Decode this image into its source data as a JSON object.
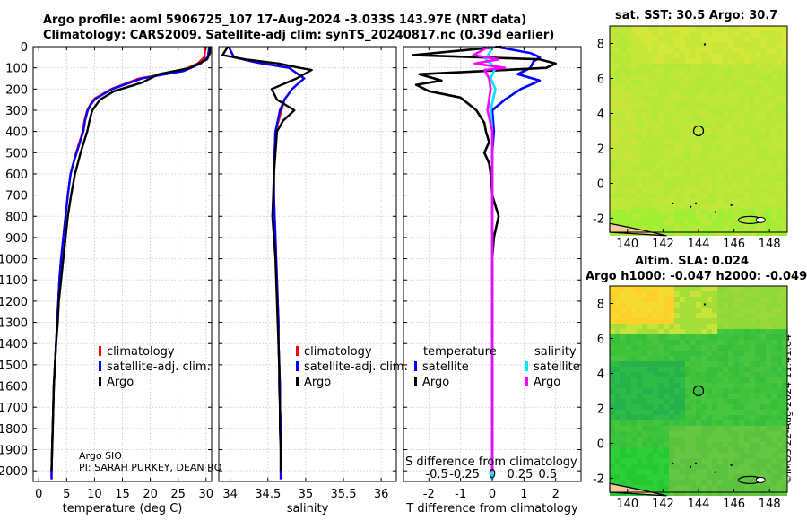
{
  "header": {
    "line1": "Argo profile: aoml 5906725_107 17-Aug-2024 -3.033S 143.97E (NRT data)",
    "line2": "Climatology: CARS2009. Satellite-adj clim: synTS_20240817.nc (0.39d earlier)"
  },
  "map_titles": {
    "sst": "sat. SST: 30.5 Argo: 30.7",
    "sla1": "Altim. SLA: 0.024",
    "sla2": "Argo h1000: -0.047 h2000: -0.049"
  },
  "stamp": "©IMOS 22-Aug-2024 11:41:04",
  "info": {
    "pi_line1": "Argo SIO",
    "pi_line2": "PI: SARAH PURKEY, DEAN RO"
  },
  "colors": {
    "climatology": "#ff0000",
    "satellite": "#0000ff",
    "argo": "#000000",
    "sal_satellite": "#00e5ff",
    "sal_argo": "#ff00ff",
    "sea_sst": "#b6e83a",
    "sea_sla": "#39c639",
    "land": "#f5c99a"
  },
  "chart_data": [
    {
      "type": "line",
      "id": "temperature",
      "xlabel": "temperature (deg C)",
      "ylabel": "",
      "xlim": [
        -1,
        31
      ],
      "ylim": [
        2050,
        0
      ],
      "xticks": [
        0,
        5,
        10,
        15,
        20,
        25,
        30
      ],
      "xtick_labels": [
        "0",
        "5",
        "10",
        "15",
        "20",
        "25",
        "30"
      ],
      "yticks": [
        0,
        100,
        200,
        300,
        400,
        500,
        600,
        700,
        800,
        900,
        1000,
        1100,
        1200,
        1300,
        1400,
        1500,
        1600,
        1700,
        1800,
        1900,
        2000
      ],
      "ytick_labels": [
        "0",
        "100",
        "200",
        "300",
        "400",
        "500",
        "600",
        "700",
        "800",
        "900",
        "1000",
        "1100",
        "1200",
        "1300",
        "1400",
        "1500",
        "1600",
        "1700",
        "1800",
        "1900",
        "2000"
      ],
      "legend": [
        "climatology",
        "satellite-adj. clim.",
        "Argo"
      ],
      "series": [
        {
          "name": "climatology",
          "x": [
            29.9,
            29.7,
            28.5,
            25.5,
            18,
            13,
            10,
            9.3,
            8.7,
            8.2,
            7.9,
            7.3,
            6.7,
            6.2,
            5.7,
            5.2,
            4.8,
            4.4,
            4,
            3.7,
            3.5,
            3.3,
            3.1,
            2.9,
            2.7,
            2.6,
            2.5,
            2.4,
            2.35,
            2.3,
            2.3
          ],
          "y": [
            0,
            50,
            80,
            115,
            150,
            200,
            245,
            270,
            300,
            350,
            400,
            450,
            500,
            550,
            600,
            700,
            800,
            900,
            1000,
            1100,
            1200,
            1300,
            1400,
            1500,
            1600,
            1700,
            1800,
            1900,
            1950,
            2000,
            2040
          ]
        },
        {
          "name": "satellite-adj. clim.",
          "x": [
            30.6,
            30.3,
            29,
            26,
            18.5,
            13.2,
            10.2,
            9.4,
            8.8,
            8.3,
            8,
            7.4,
            6.8,
            6.2,
            5.7,
            5.2,
            4.8,
            4.4,
            4,
            3.7,
            3.5,
            3.3,
            3.1,
            2.9,
            2.7,
            2.6,
            2.5,
            2.4,
            2.35,
            2.3,
            2.3
          ],
          "y": [
            0,
            50,
            80,
            115,
            150,
            200,
            245,
            270,
            300,
            350,
            400,
            450,
            500,
            550,
            600,
            700,
            800,
            900,
            1000,
            1100,
            1200,
            1300,
            1400,
            1500,
            1600,
            1700,
            1800,
            1900,
            1950,
            2000,
            2040
          ]
        },
        {
          "name": "Argo",
          "x": [
            30.7,
            30.7,
            30.2,
            27.2,
            21.5,
            18.5,
            13.5,
            11,
            9.6,
            9.1,
            8.7,
            8.1,
            7.5,
            7,
            6.5,
            5.8,
            5.2,
            4.8,
            4.4,
            4,
            3.6,
            3.4,
            3.1,
            2.9,
            2.7,
            2.6,
            2.5,
            2.4,
            2.3
          ],
          "y": [
            0,
            30,
            60,
            100,
            130,
            170,
            210,
            250,
            300,
            350,
            400,
            450,
            500,
            550,
            600,
            700,
            800,
            900,
            1000,
            1100,
            1200,
            1300,
            1400,
            1500,
            1600,
            1700,
            1800,
            1900,
            2000
          ]
        }
      ]
    },
    {
      "type": "line",
      "id": "salinity",
      "xlabel": "salinity",
      "xlim": [
        33.85,
        36.2
      ],
      "ylim": [
        2050,
        0
      ],
      "xticks": [
        34,
        34.5,
        35,
        35.5,
        36
      ],
      "xtick_labels": [
        "34",
        "34.5",
        "35",
        "35.5",
        "36"
      ],
      "legend": [
        "climatology",
        "satellite-adj. clim.",
        "Argo"
      ],
      "series": [
        {
          "name": "climatology",
          "x": [
            33.98,
            34.05,
            34.35,
            34.78,
            34.98,
            34.82,
            34.72,
            34.68,
            34.64,
            34.6,
            34.59,
            34.58,
            34.58,
            34.59,
            34.6,
            34.61,
            34.62,
            34.63,
            34.64,
            34.64,
            34.65,
            34.66,
            34.66,
            34.67,
            34.67
          ],
          "y": [
            0,
            50,
            75,
            100,
            150,
            200,
            250,
            300,
            350,
            400,
            500,
            600,
            700,
            800,
            900,
            1000,
            1100,
            1200,
            1300,
            1400,
            1500,
            1600,
            1700,
            1800,
            2040
          ]
        },
        {
          "name": "satellite-adj. clim.",
          "x": [
            33.98,
            34.05,
            34.35,
            34.78,
            34.98,
            34.82,
            34.72,
            34.66,
            34.63,
            34.6,
            34.59,
            34.58,
            34.58,
            34.59,
            34.6,
            34.61,
            34.62,
            34.63,
            34.64,
            34.64,
            34.65,
            34.66,
            34.66,
            34.67,
            34.67
          ],
          "y": [
            0,
            50,
            75,
            100,
            150,
            200,
            250,
            300,
            350,
            400,
            500,
            600,
            700,
            800,
            900,
            1000,
            1100,
            1200,
            1300,
            1400,
            1500,
            1600,
            1700,
            1800,
            2040
          ]
        },
        {
          "name": "Argo",
          "x": [
            33.97,
            33.9,
            34.2,
            34.65,
            34.92,
            35.08,
            34.88,
            34.55,
            34.62,
            34.85,
            34.7,
            34.62,
            34.6,
            34.58,
            34.57,
            34.56,
            34.58,
            34.6,
            34.61,
            34.62,
            34.63,
            34.64,
            34.65,
            34.65,
            34.66,
            34.66,
            34.67,
            34.67
          ],
          "y": [
            0,
            40,
            60,
            80,
            100,
            110,
            150,
            200,
            250,
            300,
            350,
            400,
            500,
            600,
            700,
            800,
            900,
            1000,
            1100,
            1200,
            1300,
            1400,
            1500,
            1600,
            1700,
            1800,
            1900,
            2000
          ]
        }
      ]
    },
    {
      "type": "line",
      "id": "difference",
      "xlabel": "T difference from climatology",
      "top_xlabel": "S difference from climatology",
      "xlim": [
        -2.8,
        2.8
      ],
      "ylim": [
        2050,
        0
      ],
      "xticks": [
        -2,
        -1,
        0,
        1,
        2
      ],
      "xtick_labels": [
        "-2",
        "-1",
        "0",
        "1",
        "2"
      ],
      "top_ticks": [
        -0.5,
        -0.25,
        0,
        0.25,
        0.5
      ],
      "top_tick_labels": [
        "-0.5",
        "-0.25",
        "0",
        "0.25",
        "0.5"
      ],
      "legend_headers": [
        "temperature",
        "salinity"
      ],
      "legend": [
        "satellite",
        "Argo",
        "satellite",
        "Argo"
      ],
      "series": [
        {
          "name": "temperature satellite",
          "x": [
            0.1,
            1.2,
            1.5,
            1.3,
            1.2,
            0.8,
            1.5,
            0.9,
            0.4,
            0,
            0.05,
            0,
            0,
            0,
            0,
            0,
            0,
            0,
            0,
            0,
            0,
            0,
            0,
            0
          ],
          "y": [
            0,
            30,
            50,
            70,
            100,
            130,
            160,
            200,
            250,
            300,
            400,
            500,
            600,
            800,
            1000,
            1200,
            1400,
            1500,
            1600,
            1700,
            1800,
            1900,
            2000,
            2040
          ]
        },
        {
          "name": "temperature Argo",
          "x": [
            0.3,
            -2.5,
            1.5,
            2,
            1.7,
            -2.3,
            -1.6,
            -2.4,
            -2.0,
            -1.0,
            -0.5,
            -0.25,
            -0.2,
            -0.1,
            -0.25,
            -0.1,
            -0.05,
            0,
            0.2,
            0.05,
            0,
            0,
            0,
            0,
            0,
            0,
            0
          ],
          "y": [
            0,
            40,
            60,
            80,
            100,
            130,
            160,
            180,
            210,
            240,
            300,
            360,
            400,
            450,
            500,
            550,
            600,
            700,
            800,
            900,
            1000,
            1200,
            1400,
            1600,
            1800,
            1950,
            2000
          ]
        },
        {
          "name": "salinity satellite",
          "x": [
            0.02,
            -0.2,
            0.1,
            -0.05,
            0.1,
            -0.05,
            0,
            0,
            0,
            0,
            0,
            0,
            0,
            0,
            0,
            0,
            0,
            0,
            0
          ],
          "y": [
            0,
            60,
            100,
            150,
            200,
            300,
            400,
            500,
            600,
            800,
            1000,
            1200,
            1400,
            1500,
            1600,
            1700,
            1800,
            1900,
            2040
          ]
        },
        {
          "name": "salinity Argo",
          "x": [
            -0.1,
            -0.6,
            0.2,
            -0.55,
            0.4,
            -0.25,
            -0.1,
            -0.05,
            -0.15,
            0,
            0,
            0,
            0,
            0,
            0,
            0,
            0,
            0,
            0,
            0
          ],
          "y": [
            0,
            40,
            60,
            80,
            100,
            110,
            150,
            200,
            300,
            400,
            500,
            600,
            800,
            1000,
            1200,
            1400,
            1600,
            1800,
            1950,
            2000
          ]
        }
      ]
    },
    {
      "type": "heatmap",
      "id": "sst_map",
      "title": "sat. SST: 30.5 Argo: 30.7",
      "xlim": [
        139,
        149
      ],
      "ylim": [
        -2.8,
        9
      ],
      "xticks": [
        140,
        142,
        144,
        146,
        148
      ],
      "xtick_labels": [
        "140",
        "142",
        "144",
        "146",
        "148"
      ],
      "yticks": [
        -2,
        0,
        2,
        4,
        6,
        8
      ],
      "ytick_labels": [
        "-2",
        "0",
        "2",
        "4",
        "6",
        "8"
      ],
      "argo_position": [
        144,
        3
      ]
    },
    {
      "type": "heatmap",
      "id": "sla_map",
      "title": "Altim. SLA: 0.024",
      "xlim": [
        139,
        149
      ],
      "ylim": [
        -2.8,
        9
      ],
      "xticks": [
        140,
        142,
        144,
        146,
        148
      ],
      "xtick_labels": [
        "140",
        "142",
        "144",
        "146",
        "148"
      ],
      "yticks": [
        -2,
        0,
        2,
        4,
        6,
        8
      ],
      "ytick_labels": [
        "-2",
        "0",
        "2",
        "4",
        "6",
        "8"
      ],
      "argo_position": [
        144,
        3
      ]
    }
  ]
}
